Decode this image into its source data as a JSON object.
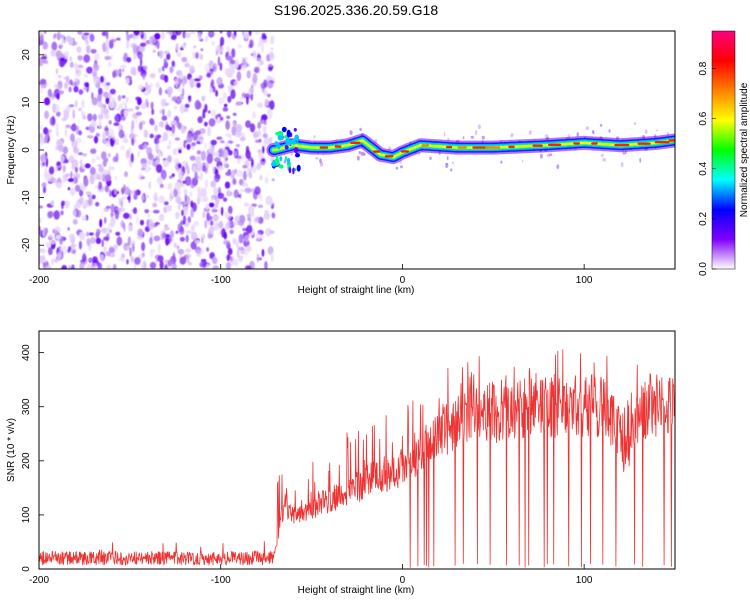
{
  "title": "S196.2025.336.20.59.G18",
  "chart_data": [
    {
      "type": "heatmap",
      "name": "spectrogram",
      "xlabel": "Height of straight line (km)",
      "ylabel": "Frequency (Hz)",
      "xlim": [
        -200,
        150
      ],
      "ylim": [
        -25,
        25
      ],
      "xticks": [
        -200,
        -100,
        0,
        100
      ],
      "yticks": [
        -20,
        -10,
        0,
        10,
        20
      ],
      "noise_region_x": [
        -200,
        -71
      ],
      "signal_start_x": -71,
      "ridge_frequency_hz": [
        {
          "x": -70,
          "f": 0
        },
        {
          "x": -60,
          "f": 1
        },
        {
          "x": -50,
          "f": 0.5
        },
        {
          "x": -40,
          "f": 0.5
        },
        {
          "x": -30,
          "f": 1
        },
        {
          "x": -22,
          "f": 2
        },
        {
          "x": -12,
          "f": -1
        },
        {
          "x": -5,
          "f": -1.5
        },
        {
          "x": 0,
          "f": -0.5
        },
        {
          "x": 10,
          "f": 1
        },
        {
          "x": 30,
          "f": 0.5
        },
        {
          "x": 50,
          "f": 0.5
        },
        {
          "x": 80,
          "f": 1
        },
        {
          "x": 100,
          "f": 1.5
        },
        {
          "x": 120,
          "f": 1
        },
        {
          "x": 140,
          "f": 1.5
        },
        {
          "x": 150,
          "f": 2
        }
      ],
      "colorbar": {
        "label": "Normalized spectral amplitude",
        "range": [
          0,
          0.95
        ],
        "ticks": [
          0.0,
          0.2,
          0.4,
          0.6,
          0.8
        ],
        "colors": [
          "#ffffff",
          "#8000ff",
          "#0000ff",
          "#00ffff",
          "#00ff00",
          "#ffff00",
          "#ff8000",
          "#ff0000",
          "#ff0080"
        ]
      }
    },
    {
      "type": "line",
      "name": "snr",
      "xlabel": "Height of straight line (km)",
      "ylabel": "SNR (10 * v/v)",
      "xlim": [
        -200,
        150
      ],
      "ylim": [
        0,
        440
      ],
      "xticks": [
        -200,
        -100,
        0,
        100
      ],
      "yticks": [
        0,
        100,
        200,
        300,
        400
      ],
      "color": "#ee3333",
      "baseline": [
        {
          "x": -200,
          "y": 20
        },
        {
          "x": -71,
          "y": 20
        },
        {
          "x": -65,
          "y": 120
        },
        {
          "x": -60,
          "y": 100
        },
        {
          "x": -40,
          "y": 130
        },
        {
          "x": -20,
          "y": 160
        },
        {
          "x": 0,
          "y": 190
        },
        {
          "x": 10,
          "y": 220
        },
        {
          "x": 20,
          "y": 255
        },
        {
          "x": 30,
          "y": 270
        },
        {
          "x": 40,
          "y": 285
        },
        {
          "x": 60,
          "y": 295
        },
        {
          "x": 80,
          "y": 300
        },
        {
          "x": 100,
          "y": 305
        },
        {
          "x": 110,
          "y": 300
        },
        {
          "x": 118,
          "y": 270
        },
        {
          "x": 122,
          "y": 215
        },
        {
          "x": 126,
          "y": 230
        },
        {
          "x": 130,
          "y": 290
        },
        {
          "x": 150,
          "y": 300
        }
      ]
    }
  ]
}
